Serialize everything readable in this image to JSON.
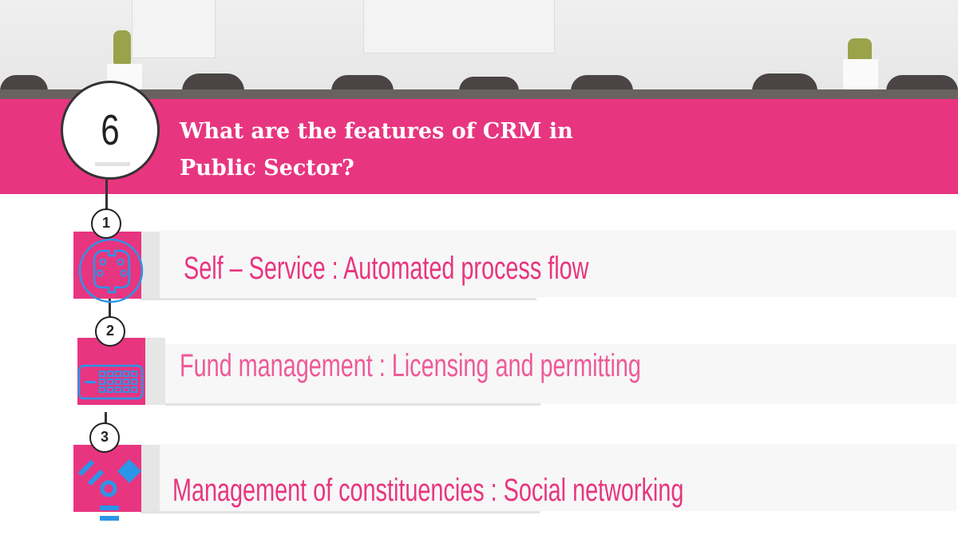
{
  "header": {
    "step_number": "6",
    "title_line1": "What are the features of CRM in",
    "title_line2": "Public Sector?"
  },
  "colors": {
    "accent": "#e83580",
    "icon_blue": "#2b95e8",
    "text_pink": "#e8357f"
  },
  "features": [
    {
      "number": "1",
      "label": "Self – Service  :  Automated process flow",
      "icon": "s-video-connector-icon"
    },
    {
      "number": "2",
      "label": "Fund management : Licensing and permitting",
      "icon": "dvi-connector-icon"
    },
    {
      "number": "3",
      "label": "Management of constituencies : Social networking",
      "icon": "shapes-icon"
    }
  ]
}
